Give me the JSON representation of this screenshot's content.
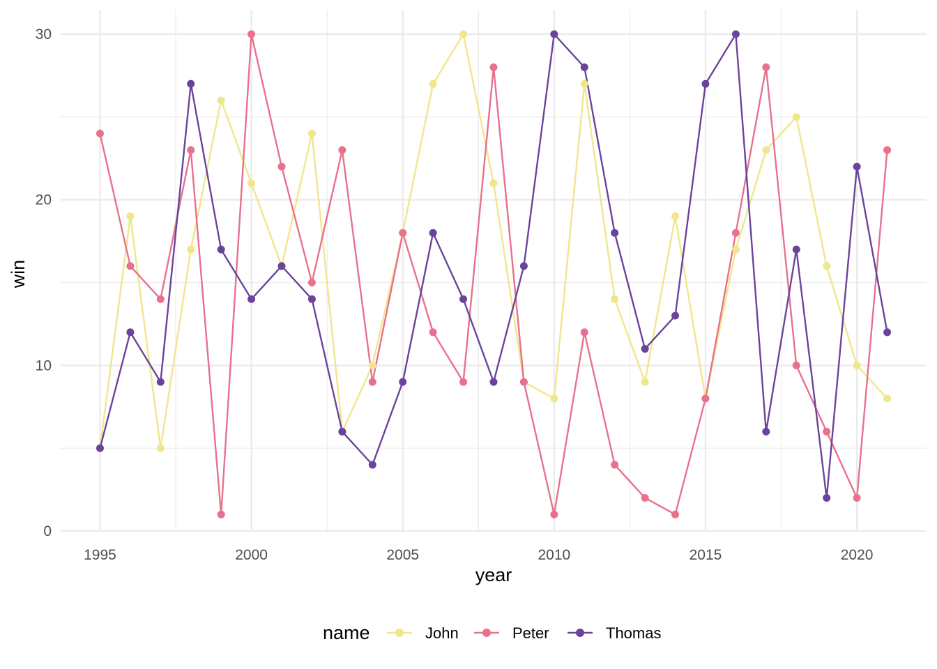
{
  "chart_data": {
    "type": "line",
    "xlabel": "year",
    "ylabel": "win",
    "xlim": [
      1993.7,
      2022.3
    ],
    "ylim": [
      0,
      30
    ],
    "x_ticks": [
      1995,
      2000,
      2005,
      2010,
      2015,
      2020
    ],
    "y_ticks": [
      0,
      10,
      20,
      30
    ],
    "grid": true,
    "legend": {
      "title": "name",
      "position": "bottom"
    },
    "x": [
      1995,
      1996,
      1997,
      1998,
      1999,
      2000,
      2001,
      2002,
      2003,
      2004,
      2005,
      2006,
      2007,
      2008,
      2009,
      2010,
      2011,
      2012,
      2013,
      2014,
      2015,
      2016,
      2017,
      2018,
      2019,
      2020,
      2021
    ],
    "series": [
      {
        "name": "John",
        "color": "#f0e68c",
        "values": [
          5,
          19,
          5,
          17,
          26,
          21,
          16,
          24,
          6,
          10,
          18,
          27,
          30,
          21,
          9,
          8,
          27,
          14,
          9,
          19,
          8,
          17,
          23,
          25,
          16,
          10,
          8
        ]
      },
      {
        "name": "Peter",
        "color": "#e8718d",
        "values": [
          24,
          16,
          14,
          23,
          1,
          30,
          22,
          15,
          23,
          9,
          18,
          12,
          9,
          28,
          9,
          1,
          12,
          4,
          2,
          1,
          8,
          18,
          28,
          10,
          6,
          2,
          23
        ]
      },
      {
        "name": "Thomas",
        "color": "#6a449b",
        "values": [
          5,
          12,
          9,
          27,
          17,
          14,
          16,
          14,
          6,
          4,
          9,
          18,
          14,
          9,
          16,
          30,
          28,
          18,
          11,
          13,
          27,
          30,
          6,
          17,
          2,
          22,
          12
        ]
      }
    ]
  }
}
